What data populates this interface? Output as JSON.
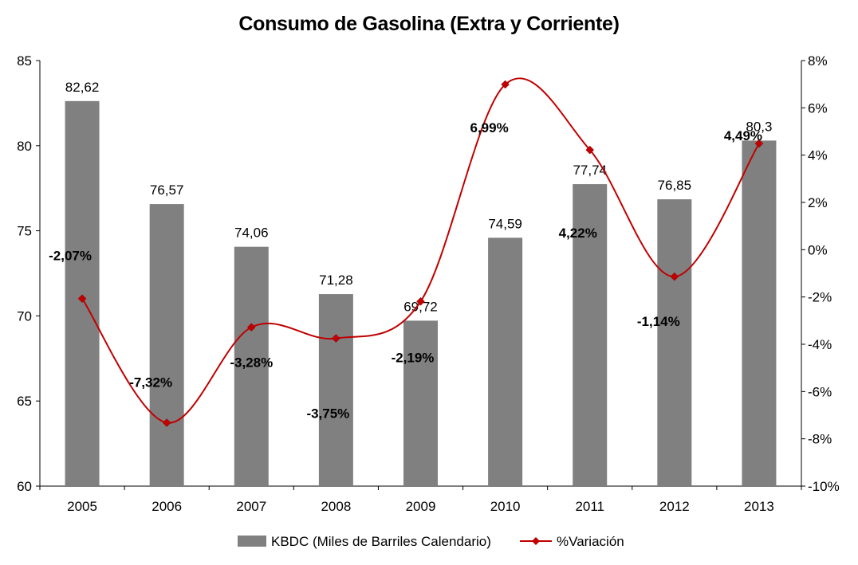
{
  "chart_data": {
    "type": "bar",
    "title": "Consumo de Gasolina (Extra y Corriente)",
    "categories": [
      "2005",
      "2006",
      "2007",
      "2008",
      "2009",
      "2010",
      "2011",
      "2012",
      "2013"
    ],
    "series": [
      {
        "name": "KBDC (Miles de Barriles Calendario)",
        "type": "bar",
        "axis": "left",
        "color": "#808080",
        "values": [
          82.62,
          76.57,
          74.06,
          71.28,
          69.72,
          74.59,
          77.74,
          76.85,
          80.3
        ],
        "labels": [
          "82,62",
          "76,57",
          "74,06",
          "71,28",
          "69,72",
          "74,59",
          "77,74",
          "76,85",
          "80,3"
        ]
      },
      {
        "name": "%Variación",
        "type": "line",
        "smooth": true,
        "axis": "right",
        "color": "#c00000",
        "marker": "diamond",
        "values": [
          -2.07,
          -7.32,
          -3.28,
          -3.75,
          -2.19,
          6.99,
          4.22,
          -1.14,
          4.49
        ],
        "labels": [
          "-2,07%",
          "-7,32%",
          "-3,28%",
          "-3,75%",
          "-2,19%",
          "6,99%",
          "4,22%",
          "-1,14%",
          "4,49%"
        ]
      }
    ],
    "y_left": {
      "min": 60,
      "max": 85,
      "ticks": [
        "60",
        "65",
        "70",
        "75",
        "80",
        "85"
      ]
    },
    "y_right": {
      "min": -10,
      "max": 8,
      "ticks": [
        "-10%",
        "-8%",
        "-6%",
        "-4%",
        "-2%",
        "0%",
        "2%",
        "4%",
        "6%",
        "8%"
      ]
    },
    "grid": false,
    "legend": "bottom"
  }
}
